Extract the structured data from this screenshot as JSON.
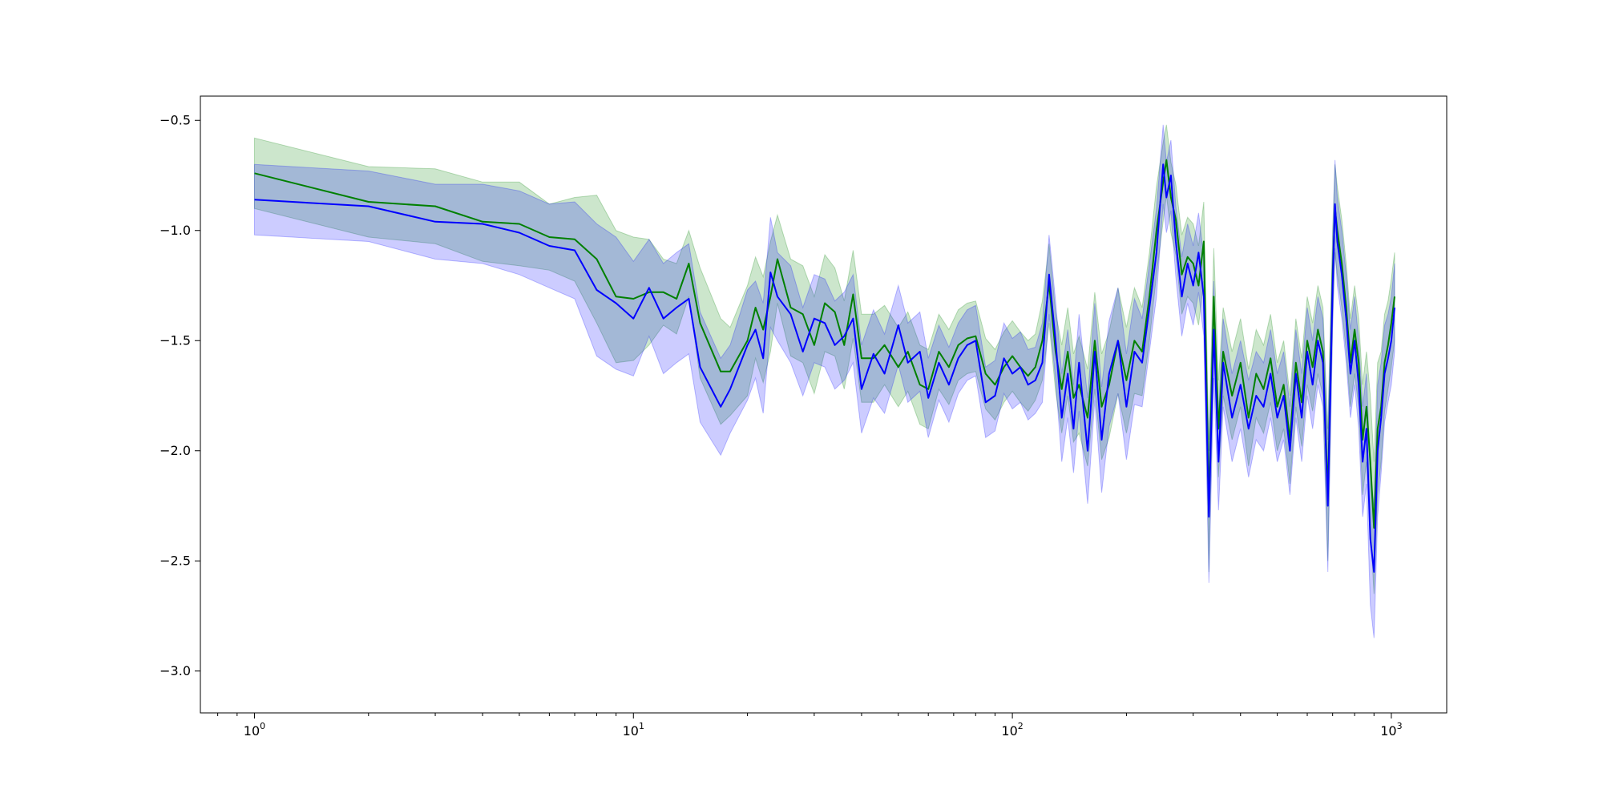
{
  "chart_data": {
    "type": "line",
    "title": "",
    "xlabel": "",
    "ylabel": "",
    "xscale": "log",
    "xlim": [
      0.72,
      1400
    ],
    "ylim": [
      -3.19,
      -0.39
    ],
    "grid": false,
    "legend": "none",
    "x_ticks": [
      {
        "value": 1,
        "base": "10",
        "exp": "0"
      },
      {
        "value": 10,
        "base": "10",
        "exp": "1"
      },
      {
        "value": 100,
        "base": "10",
        "exp": "2"
      },
      {
        "value": 1000,
        "base": "10",
        "exp": "3"
      }
    ],
    "y_ticks": [
      {
        "value": -0.5,
        "label": "−0.5"
      },
      {
        "value": -1.0,
        "label": "−1.0"
      },
      {
        "value": -1.5,
        "label": "−1.5"
      },
      {
        "value": -2.0,
        "label": "−2.0"
      },
      {
        "value": -2.5,
        "label": "−2.5"
      },
      {
        "value": -3.0,
        "label": "−3.0"
      }
    ],
    "series": [
      {
        "color": "#008000",
        "band_color": "#008000",
        "band_opacity": 0.2,
        "points": [
          [
            1,
            -0.74,
            0.16
          ],
          [
            2,
            -0.87,
            0.16
          ],
          [
            3,
            -0.89,
            0.17
          ],
          [
            4,
            -0.96,
            0.18
          ],
          [
            5,
            -0.97,
            0.19
          ],
          [
            6,
            -1.03,
            0.15
          ],
          [
            7,
            -1.04,
            0.19
          ],
          [
            8,
            -1.13,
            0.29
          ],
          [
            9,
            -1.3,
            0.3
          ],
          [
            10,
            -1.31,
            0.28
          ],
          [
            11,
            -1.28,
            0.24
          ],
          [
            12,
            -1.28,
            0.15
          ],
          [
            13,
            -1.31,
            0.16
          ],
          [
            14,
            -1.15,
            0.15
          ],
          [
            15,
            -1.42,
            0.25
          ],
          [
            17,
            -1.64,
            0.24
          ],
          [
            18,
            -1.64,
            0.2
          ],
          [
            20,
            -1.5,
            0.25
          ],
          [
            21,
            -1.35,
            0.23
          ],
          [
            22,
            -1.45,
            0.24
          ],
          [
            23,
            -1.3,
            0.25
          ],
          [
            24,
            -1.13,
            0.2
          ],
          [
            26,
            -1.35,
            0.22
          ],
          [
            28,
            -1.38,
            0.22
          ],
          [
            30,
            -1.52,
            0.22
          ],
          [
            32,
            -1.33,
            0.22
          ],
          [
            34,
            -1.37,
            0.2
          ],
          [
            36,
            -1.52,
            0.2
          ],
          [
            38,
            -1.29,
            0.2
          ],
          [
            40,
            -1.58,
            0.2
          ],
          [
            43,
            -1.58,
            0.2
          ],
          [
            46,
            -1.52,
            0.18
          ],
          [
            50,
            -1.62,
            0.18
          ],
          [
            53,
            -1.55,
            0.18
          ],
          [
            57,
            -1.7,
            0.18
          ],
          [
            60,
            -1.72,
            0.18
          ],
          [
            64,
            -1.55,
            0.17
          ],
          [
            68,
            -1.62,
            0.17
          ],
          [
            72,
            -1.52,
            0.16
          ],
          [
            76,
            -1.49,
            0.16
          ],
          [
            80,
            -1.48,
            0.16
          ],
          [
            85,
            -1.65,
            0.16
          ],
          [
            90,
            -1.7,
            0.16
          ],
          [
            95,
            -1.62,
            0.16
          ],
          [
            100,
            -1.57,
            0.16
          ],
          [
            105,
            -1.62,
            0.16
          ],
          [
            110,
            -1.66,
            0.16
          ],
          [
            115,
            -1.62,
            0.15
          ],
          [
            120,
            -1.5,
            0.18
          ],
          [
            125,
            -1.24,
            0.18
          ],
          [
            130,
            -1.55,
            0.18
          ],
          [
            135,
            -1.72,
            0.2
          ],
          [
            140,
            -1.55,
            0.2
          ],
          [
            145,
            -1.76,
            0.2
          ],
          [
            150,
            -1.7,
            0.22
          ],
          [
            158,
            -1.85,
            0.22
          ],
          [
            165,
            -1.5,
            0.22
          ],
          [
            172,
            -1.8,
            0.24
          ],
          [
            180,
            -1.7,
            0.24
          ],
          [
            190,
            -1.5,
            0.24
          ],
          [
            200,
            -1.68,
            0.24
          ],
          [
            210,
            -1.5,
            0.24
          ],
          [
            220,
            -1.55,
            0.2
          ],
          [
            230,
            -1.3,
            0.2
          ],
          [
            240,
            -1.0,
            0.2
          ],
          [
            250,
            -0.78,
            0.18
          ],
          [
            255,
            -0.68,
            0.16
          ],
          [
            262,
            -0.85,
            0.16
          ],
          [
            270,
            -0.95,
            0.16
          ],
          [
            280,
            -1.2,
            0.18
          ],
          [
            290,
            -1.12,
            0.18
          ],
          [
            300,
            -1.15,
            0.18
          ],
          [
            310,
            -1.25,
            0.18
          ],
          [
            320,
            -1.05,
            0.18
          ],
          [
            330,
            -2.25,
            0.3
          ],
          [
            340,
            -1.3,
            0.22
          ],
          [
            350,
            -1.9,
            0.22
          ],
          [
            360,
            -1.55,
            0.2
          ],
          [
            380,
            -1.75,
            0.2
          ],
          [
            400,
            -1.6,
            0.2
          ],
          [
            420,
            -1.85,
            0.22
          ],
          [
            440,
            -1.65,
            0.2
          ],
          [
            460,
            -1.72,
            0.2
          ],
          [
            480,
            -1.58,
            0.2
          ],
          [
            500,
            -1.8,
            0.2
          ],
          [
            520,
            -1.7,
            0.2
          ],
          [
            540,
            -1.95,
            0.2
          ],
          [
            560,
            -1.6,
            0.2
          ],
          [
            580,
            -1.78,
            0.2
          ],
          [
            600,
            -1.5,
            0.2
          ],
          [
            620,
            -1.62,
            0.2
          ],
          [
            640,
            -1.45,
            0.2
          ],
          [
            660,
            -1.55,
            0.2
          ],
          [
            680,
            -2.2,
            0.3
          ],
          [
            700,
            -1.2,
            0.2
          ],
          [
            710,
            -0.9,
            0.2
          ],
          [
            720,
            -1.0,
            0.2
          ],
          [
            740,
            -1.15,
            0.2
          ],
          [
            760,
            -1.35,
            0.2
          ],
          [
            780,
            -1.6,
            0.2
          ],
          [
            800,
            -1.45,
            0.2
          ],
          [
            820,
            -1.6,
            0.2
          ],
          [
            840,
            -1.95,
            0.25
          ],
          [
            860,
            -1.8,
            0.25
          ],
          [
            880,
            -2.05,
            0.3
          ],
          [
            900,
            -2.35,
            0.3
          ],
          [
            920,
            -1.9,
            0.3
          ],
          [
            940,
            -1.8,
            0.25
          ],
          [
            960,
            -1.6,
            0.22
          ],
          [
            980,
            -1.52,
            0.2
          ],
          [
            1000,
            -1.42,
            0.2
          ],
          [
            1020,
            -1.3,
            0.2
          ]
        ]
      },
      {
        "color": "#0000ff",
        "band_color": "#0000ff",
        "band_opacity": 0.2,
        "points": [
          [
            1,
            -0.86,
            0.16
          ],
          [
            2,
            -0.89,
            0.16
          ],
          [
            3,
            -0.96,
            0.17
          ],
          [
            4,
            -0.97,
            0.18
          ],
          [
            5,
            -1.01,
            0.19
          ],
          [
            6,
            -1.07,
            0.19
          ],
          [
            7,
            -1.09,
            0.22
          ],
          [
            8,
            -1.27,
            0.3
          ],
          [
            9,
            -1.33,
            0.3
          ],
          [
            10,
            -1.4,
            0.26
          ],
          [
            11,
            -1.26,
            0.22
          ],
          [
            12,
            -1.4,
            0.25
          ],
          [
            13,
            -1.35,
            0.25
          ],
          [
            14,
            -1.31,
            0.25
          ],
          [
            15,
            -1.62,
            0.25
          ],
          [
            17,
            -1.8,
            0.22
          ],
          [
            18,
            -1.72,
            0.2
          ],
          [
            20,
            -1.52,
            0.25
          ],
          [
            21,
            -1.45,
            0.22
          ],
          [
            22,
            -1.58,
            0.25
          ],
          [
            23,
            -1.19,
            0.25
          ],
          [
            24,
            -1.3,
            0.2
          ],
          [
            26,
            -1.38,
            0.22
          ],
          [
            28,
            -1.55,
            0.2
          ],
          [
            30,
            -1.4,
            0.2
          ],
          [
            32,
            -1.42,
            0.2
          ],
          [
            34,
            -1.52,
            0.2
          ],
          [
            36,
            -1.48,
            0.2
          ],
          [
            38,
            -1.4,
            0.2
          ],
          [
            40,
            -1.72,
            0.2
          ],
          [
            43,
            -1.56,
            0.2
          ],
          [
            46,
            -1.65,
            0.18
          ],
          [
            50,
            -1.43,
            0.18
          ],
          [
            53,
            -1.6,
            0.18
          ],
          [
            57,
            -1.55,
            0.18
          ],
          [
            60,
            -1.76,
            0.18
          ],
          [
            64,
            -1.6,
            0.17
          ],
          [
            68,
            -1.7,
            0.17
          ],
          [
            72,
            -1.58,
            0.16
          ],
          [
            76,
            -1.52,
            0.16
          ],
          [
            80,
            -1.5,
            0.16
          ],
          [
            85,
            -1.78,
            0.16
          ],
          [
            90,
            -1.75,
            0.16
          ],
          [
            95,
            -1.58,
            0.16
          ],
          [
            100,
            -1.65,
            0.16
          ],
          [
            105,
            -1.62,
            0.16
          ],
          [
            110,
            -1.7,
            0.16
          ],
          [
            115,
            -1.68,
            0.15
          ],
          [
            120,
            -1.6,
            0.18
          ],
          [
            125,
            -1.2,
            0.18
          ],
          [
            130,
            -1.5,
            0.18
          ],
          [
            135,
            -1.85,
            0.2
          ],
          [
            140,
            -1.65,
            0.2
          ],
          [
            145,
            -1.9,
            0.2
          ],
          [
            150,
            -1.6,
            0.22
          ],
          [
            158,
            -2.0,
            0.24
          ],
          [
            165,
            -1.55,
            0.22
          ],
          [
            172,
            -1.95,
            0.24
          ],
          [
            180,
            -1.65,
            0.24
          ],
          [
            190,
            -1.5,
            0.24
          ],
          [
            200,
            -1.8,
            0.24
          ],
          [
            210,
            -1.55,
            0.24
          ],
          [
            220,
            -1.6,
            0.2
          ],
          [
            230,
            -1.35,
            0.2
          ],
          [
            240,
            -1.1,
            0.2
          ],
          [
            250,
            -0.7,
            0.18
          ],
          [
            255,
            -0.85,
            0.16
          ],
          [
            262,
            -0.75,
            0.16
          ],
          [
            270,
            -1.05,
            0.16
          ],
          [
            280,
            -1.3,
            0.18
          ],
          [
            290,
            -1.15,
            0.18
          ],
          [
            300,
            -1.25,
            0.18
          ],
          [
            310,
            -1.1,
            0.18
          ],
          [
            320,
            -1.3,
            0.18
          ],
          [
            330,
            -2.3,
            0.3
          ],
          [
            340,
            -1.45,
            0.22
          ],
          [
            350,
            -2.05,
            0.22
          ],
          [
            360,
            -1.6,
            0.2
          ],
          [
            380,
            -1.85,
            0.2
          ],
          [
            400,
            -1.7,
            0.2
          ],
          [
            420,
            -1.9,
            0.22
          ],
          [
            440,
            -1.75,
            0.2
          ],
          [
            460,
            -1.8,
            0.2
          ],
          [
            480,
            -1.65,
            0.2
          ],
          [
            500,
            -1.85,
            0.2
          ],
          [
            520,
            -1.75,
            0.2
          ],
          [
            540,
            -2.0,
            0.2
          ],
          [
            560,
            -1.65,
            0.2
          ],
          [
            580,
            -1.85,
            0.2
          ],
          [
            600,
            -1.55,
            0.2
          ],
          [
            620,
            -1.7,
            0.2
          ],
          [
            640,
            -1.5,
            0.2
          ],
          [
            660,
            -1.6,
            0.2
          ],
          [
            680,
            -2.25,
            0.3
          ],
          [
            700,
            -1.25,
            0.2
          ],
          [
            710,
            -0.88,
            0.2
          ],
          [
            720,
            -1.05,
            0.2
          ],
          [
            740,
            -1.2,
            0.2
          ],
          [
            760,
            -1.4,
            0.2
          ],
          [
            780,
            -1.65,
            0.2
          ],
          [
            800,
            -1.5,
            0.2
          ],
          [
            820,
            -1.7,
            0.2
          ],
          [
            840,
            -2.05,
            0.25
          ],
          [
            860,
            -1.9,
            0.25
          ],
          [
            880,
            -2.4,
            0.3
          ],
          [
            900,
            -2.55,
            0.3
          ],
          [
            920,
            -2.0,
            0.3
          ],
          [
            940,
            -1.85,
            0.25
          ],
          [
            960,
            -1.65,
            0.22
          ],
          [
            980,
            -1.58,
            0.2
          ],
          [
            1000,
            -1.5,
            0.2
          ],
          [
            1020,
            -1.35,
            0.2
          ]
        ]
      }
    ]
  }
}
